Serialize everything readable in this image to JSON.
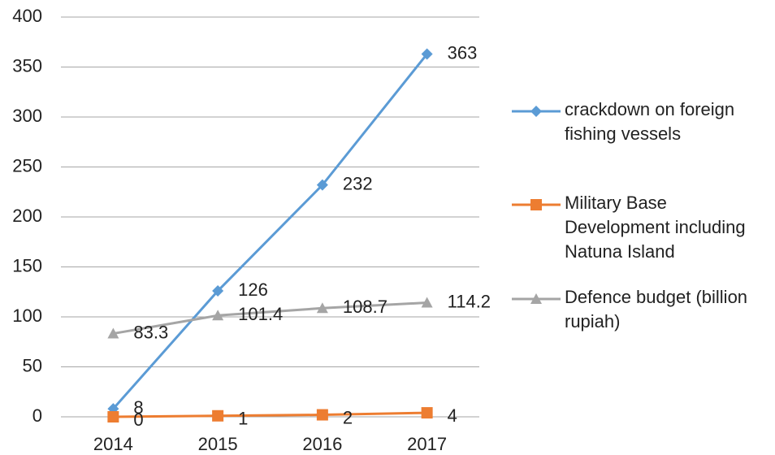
{
  "chart_data": {
    "type": "line",
    "categories": [
      "2014",
      "2015",
      "2016",
      "2017"
    ],
    "series": [
      {
        "name": "crackdown on foreign fishing vessels",
        "color": "#5b9bd5",
        "marker": "diamond",
        "values": [
          8,
          126,
          232,
          363
        ]
      },
      {
        "name": "Military Base Development including Natuna Island",
        "color": "#ed7d31",
        "marker": "square",
        "values": [
          0,
          1,
          2,
          4
        ]
      },
      {
        "name": "Defence budget (billion rupiah)",
        "color": "#a5a5a5",
        "marker": "triangle",
        "values": [
          83.3,
          101.4,
          108.7,
          114.2
        ]
      }
    ],
    "ylim": [
      0,
      400
    ],
    "yticks": [
      0,
      50,
      100,
      150,
      200,
      250,
      300,
      350,
      400
    ],
    "grid": true,
    "legend": "right"
  }
}
